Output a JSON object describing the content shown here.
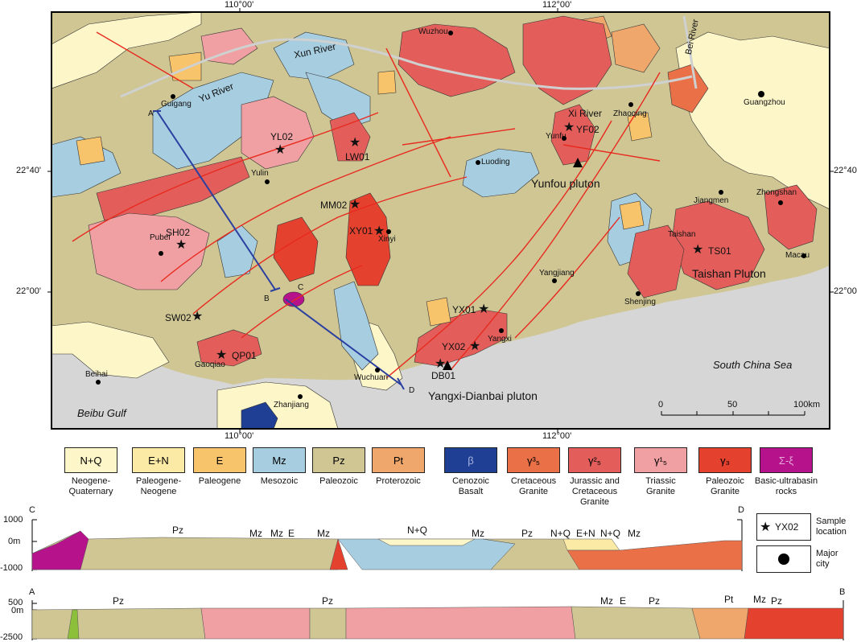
{
  "map": {
    "ticks": {
      "lon_110": "110°00'",
      "lon_112": "112°00'",
      "lat_2240": "22°40'",
      "lat_2200": "22°00'"
    },
    "places": {
      "wuzhou": "Wuzhou",
      "xun_river": "Xun River",
      "bei_river": "Bei River",
      "guigang": "Guigang",
      "yu_river": "Yu River",
      "zhaoqing": "Zhaoqing",
      "guangzhou": "Guangzhou",
      "xi_river": "Xi River",
      "yunfu": "Yunfu",
      "luoding": "Luoding",
      "yunfou_pluton": "Yunfou pluton",
      "yulin": "Yulin",
      "jiangmen": "Jiangmen",
      "zhongshan": "Zhongshan",
      "xinyi": "Xinyi",
      "pubei": "Pubei",
      "taishan": "Taishan",
      "taishan_pluton": "Taishan Pluton",
      "macau": "Macau",
      "yangjiang": "Yangjiang",
      "shenjing": "Shenjing",
      "yangxi": "Yangxi",
      "beihai": "Beihai",
      "gaoqiao": "Gaoqiao",
      "wuchuan": "Wuchuan",
      "zhanjiang": "Zhanjiang",
      "south_china_sea": "South China Sea",
      "beibu_gulf": "Beibu Gulf",
      "yangxi_dianbai_pluton": "Yangxi-Dianbai pluton"
    },
    "samples": {
      "yl02": "YL02",
      "lw01": "LW01",
      "yf02": "YF02",
      "mm02": "MM02",
      "xy01": "XY01",
      "sh02": "SH02",
      "ts01": "TS01",
      "sw02": "SW02",
      "yx01": "YX01",
      "yx02": "YX02",
      "qp01": "QP01",
      "db01": "DB01"
    },
    "section_points": {
      "a": "A",
      "b": "B",
      "c": "C",
      "d": "D"
    },
    "scale": {
      "zero": "0",
      "fifty": "50",
      "hundred": "100km"
    }
  },
  "legend": {
    "items": [
      {
        "code": "N+Q",
        "caption": "Neogene-\nQuaternary",
        "color": "#fdf6c8"
      },
      {
        "code": "E+N",
        "caption": "Paleogene-\nNeogene",
        "color": "#fbeaa6"
      },
      {
        "code": "E",
        "caption": "Paleogene",
        "color": "#f7c36b"
      },
      {
        "code": "Mz",
        "caption": "Mesozoic",
        "color": "#a7cde0"
      },
      {
        "code": "Pz",
        "caption": "Paleozoic",
        "color": "#cfc694"
      },
      {
        "code": "Pt",
        "caption": "Proterozoic",
        "color": "#f0a76b"
      },
      {
        "code": "β",
        "caption": "Cenozoic\nBasalt",
        "color": "#1f3f95"
      },
      {
        "code": "γ³₅",
        "caption": "Cretaceous\nGranite",
        "color": "#ea7048"
      },
      {
        "code": "γ²₅",
        "caption": "Jurassic and\nCretaceous\nGranite",
        "color": "#e35e5a"
      },
      {
        "code": "γ¹₅",
        "caption": "Triassic\nGranite",
        "color": "#f0a0a2"
      },
      {
        "code": "γ₃",
        "caption": "Paleozoic\nGranite",
        "color": "#e4412e"
      },
      {
        "code": "Σ-ξ",
        "caption": "Basic-ultrabasin\nrocks",
        "color": "#b5128b"
      }
    ],
    "sample_label": "YX02",
    "sample_caption": "Sample\nlocation",
    "city_caption": "Major\ncity"
  },
  "section_cd": {
    "ends": {
      "left": "C",
      "right": "D"
    },
    "scale": {
      "top": "1000",
      "mid": "0m",
      "bottom": "-1000"
    },
    "units": [
      "Pz",
      "Mz",
      "Mz",
      "E",
      "Mz",
      "N+Q",
      "Mz",
      "Pz",
      "N+Q",
      "E+N",
      "N+Q",
      "Mz"
    ]
  },
  "section_ab": {
    "ends": {
      "left": "A",
      "right": "B"
    },
    "scale": {
      "top": "500",
      "mid": "0m",
      "bottom": "-2500"
    },
    "units": [
      "Pz",
      "Pz",
      "Mz",
      "E",
      "Pz",
      "Pt",
      "Mz",
      "Pz"
    ]
  },
  "colors": {
    "sea": "#d6d6d6",
    "paleozoic": "#cfc694",
    "mesozoic": "#a7cde0",
    "neogene_quaternary": "#fdf6c8",
    "paleogene": "#f7c36b",
    "proterozoic": "#f0a76b",
    "jurassic_cretaceous_granite": "#e35e5a",
    "triassic_granite": "#f0a0a2",
    "cretaceous_granite": "#ea7048",
    "paleozoic_granite": "#e4412e",
    "basalt": "#1f3f95",
    "ultrabasic": "#b5128b",
    "fault": "#e82a1f",
    "section_line": "#2a3fa0"
  }
}
